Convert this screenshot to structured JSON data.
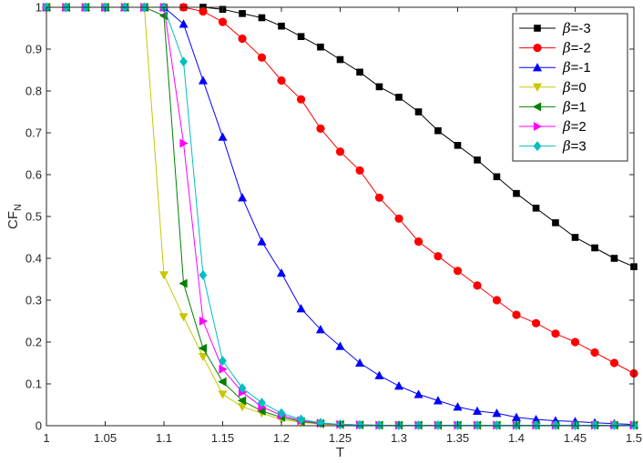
{
  "chart_data": {
    "type": "line",
    "title": "",
    "xlabel": "T",
    "ylabel_main": "CF",
    "ylabel_sub": "N",
    "xlim": [
      1,
      1.5
    ],
    "ylim": [
      0,
      1
    ],
    "xticks": [
      "1",
      "1.05",
      "1.1",
      "1.15",
      "1.2",
      "1.25",
      "1.3",
      "1.35",
      "1.4",
      "1.45",
      "1.5"
    ],
    "yticks": [
      "0",
      "0.1",
      "0.2",
      "0.3",
      "0.4",
      "0.5",
      "0.6",
      "0.7",
      "0.8",
      "0.9",
      "1"
    ],
    "grid": false,
    "legend_position": "top-right",
    "x": [
      1.0,
      1.0167,
      1.0333,
      1.05,
      1.0667,
      1.0833,
      1.1,
      1.1167,
      1.1333,
      1.15,
      1.1667,
      1.1833,
      1.2,
      1.2167,
      1.2333,
      1.25,
      1.2667,
      1.2833,
      1.3,
      1.3167,
      1.3333,
      1.35,
      1.3667,
      1.3833,
      1.4,
      1.4167,
      1.4333,
      1.45,
      1.4667,
      1.4833,
      1.5
    ],
    "series": [
      {
        "name": "=-3",
        "symbol": "β",
        "color": "#000000",
        "marker": "square",
        "values": [
          1,
          1,
          1,
          1,
          1,
          1,
          1,
          1,
          1,
          0.995,
          0.985,
          0.975,
          0.955,
          0.93,
          0.905,
          0.875,
          0.845,
          0.81,
          0.785,
          0.75,
          0.705,
          0.67,
          0.635,
          0.595,
          0.555,
          0.52,
          0.485,
          0.45,
          0.425,
          0.4,
          0.38
        ]
      },
      {
        "name": "=-2",
        "symbol": "β",
        "color": "#ff0000",
        "marker": "circle",
        "values": [
          1,
          1,
          1,
          1,
          1,
          1,
          1,
          1,
          0.99,
          0.965,
          0.925,
          0.88,
          0.825,
          0.78,
          0.71,
          0.655,
          0.61,
          0.545,
          0.495,
          0.44,
          0.405,
          0.37,
          0.335,
          0.3,
          0.265,
          0.245,
          0.22,
          0.2,
          0.175,
          0.15,
          0.125
        ]
      },
      {
        "name": "=-1",
        "symbol": "β",
        "color": "#0000ff",
        "marker": "triangle-up",
        "values": [
          1,
          1,
          1,
          1,
          1,
          1,
          1,
          0.96,
          0.825,
          0.69,
          0.545,
          0.44,
          0.365,
          0.28,
          0.23,
          0.19,
          0.15,
          0.12,
          0.095,
          0.075,
          0.06,
          0.045,
          0.035,
          0.03,
          0.02,
          0.015,
          0.012,
          0.01,
          0.007,
          0.005,
          0.003
        ]
      },
      {
        "name": "=0",
        "symbol": "β",
        "color": "#c8c800",
        "marker": "triangle-down",
        "values": [
          1,
          1,
          1,
          1,
          1,
          1,
          0.36,
          0.26,
          0.165,
          0.075,
          0.045,
          0.03,
          0.015,
          0.008,
          0.004,
          0.002,
          0.001,
          0.001,
          0.001,
          0.001,
          0.001,
          0.001,
          0.001,
          0.001,
          0.001,
          0.001,
          0.001,
          0.001,
          0.001,
          0.001,
          0.001
        ]
      },
      {
        "name": "=1",
        "symbol": "β",
        "color": "#008000",
        "marker": "triangle-left",
        "values": [
          1,
          1,
          1,
          1,
          1,
          1,
          0.98,
          0.34,
          0.185,
          0.105,
          0.06,
          0.035,
          0.02,
          0.01,
          0.005,
          0.003,
          0.002,
          0.001,
          0.001,
          0.001,
          0.001,
          0.001,
          0.001,
          0.001,
          0.001,
          0.001,
          0.001,
          0.001,
          0.001,
          0.001,
          0.001
        ]
      },
      {
        "name": "=2",
        "symbol": "β",
        "color": "#ff00ff",
        "marker": "triangle-right",
        "values": [
          1,
          1,
          1,
          1,
          1,
          1,
          1,
          0.675,
          0.25,
          0.135,
          0.08,
          0.045,
          0.025,
          0.012,
          0.006,
          0.003,
          0.002,
          0.001,
          0.001,
          0.001,
          0.001,
          0.001,
          0.001,
          0.001,
          0.001,
          0.001,
          0.001,
          0.001,
          0.001,
          0.001,
          0.001
        ]
      },
      {
        "name": "=3",
        "symbol": "β",
        "color": "#00bfbf",
        "marker": "diamond",
        "values": [
          1,
          1,
          1,
          1,
          1,
          1,
          1,
          0.87,
          0.36,
          0.155,
          0.09,
          0.055,
          0.03,
          0.015,
          0.007,
          0.003,
          0.002,
          0.001,
          0.001,
          0.001,
          0.001,
          0.001,
          0.001,
          0.001,
          0.001,
          0.001,
          0.001,
          0.001,
          0.001,
          0.001,
          0.001
        ]
      }
    ]
  }
}
